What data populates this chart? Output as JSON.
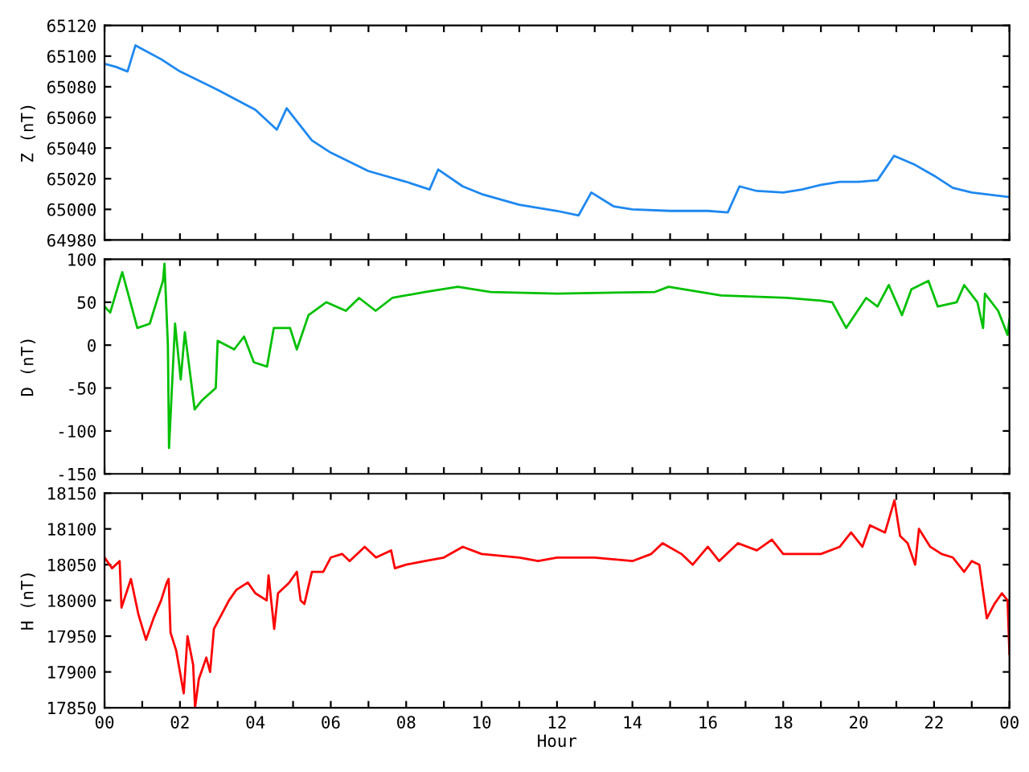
{
  "chart_data": [
    {
      "type": "line",
      "ylabel": "Z (nT)",
      "xlim": [
        0,
        24
      ],
      "ylim": [
        64980,
        65120
      ],
      "yticks": [
        64980,
        65000,
        65020,
        65040,
        65060,
        65080,
        65100,
        65120
      ],
      "tick_labels": "y",
      "grid": false,
      "xticks": [
        {
          "value": 0,
          "label": null
        },
        {
          "value": 1,
          "label": null
        },
        {
          "value": 2,
          "label": null
        },
        {
          "value": 3,
          "label": null
        },
        {
          "value": 4,
          "label": null
        },
        {
          "value": 5,
          "label": null
        },
        {
          "value": 6,
          "label": null
        },
        {
          "value": 7,
          "label": null
        },
        {
          "value": 8,
          "label": null
        },
        {
          "value": 9,
          "label": null
        },
        {
          "value": 10,
          "label": null
        },
        {
          "value": 11,
          "label": null
        },
        {
          "value": 12,
          "label": null
        },
        {
          "value": 13,
          "label": null
        },
        {
          "value": 14,
          "label": null
        },
        {
          "value": 15,
          "label": null
        },
        {
          "value": 16,
          "label": null
        },
        {
          "value": 17,
          "label": null
        },
        {
          "value": 18,
          "label": null
        },
        {
          "value": 19,
          "label": null
        },
        {
          "value": 20,
          "label": null
        },
        {
          "value": 21,
          "label": null
        },
        {
          "value": 22,
          "label": null
        },
        {
          "value": 23,
          "label": null
        },
        {
          "value": 24,
          "label": null
        }
      ],
      "x": [
        0,
        0.3,
        0.61,
        0.82,
        1.5,
        2,
        3,
        4,
        4.57,
        4.83,
        5.5,
        6,
        7,
        8,
        8.62,
        8.85,
        9.5,
        10,
        11,
        12,
        12.57,
        12.91,
        13.5,
        14,
        15,
        16,
        16.53,
        16.84,
        17.3,
        18,
        18.5,
        19,
        19.5,
        20,
        20.5,
        20.94,
        21.5,
        22,
        22.5,
        23,
        24
      ],
      "series": [
        {
          "color": "#1e88f0",
          "values": [
            65095,
            65093,
            65090,
            65107,
            65098,
            65090,
            65078,
            65065,
            65052,
            65066,
            65045,
            65037,
            65025,
            65018,
            65013,
            65026,
            65015,
            65010,
            65003,
            64999,
            64996,
            65011,
            65002,
            65000,
            64999,
            64999,
            64998,
            65015,
            65012,
            65011,
            65013,
            65016,
            65018,
            65018,
            65019,
            65035,
            65029,
            65022,
            65014,
            65011,
            65008
          ]
        }
      ]
    },
    {
      "type": "line",
      "ylabel": "D (nT)",
      "xlim": [
        0,
        24
      ],
      "ylim": [
        -150,
        100
      ],
      "yticks": [
        -150,
        -100,
        -50,
        0,
        50,
        100
      ],
      "tick_labels": "y",
      "grid": false,
      "xticks": [
        {
          "value": 0,
          "label": null
        },
        {
          "value": 1,
          "label": null
        },
        {
          "value": 2,
          "label": null
        },
        {
          "value": 3,
          "label": null
        },
        {
          "value": 4,
          "label": null
        },
        {
          "value": 5,
          "label": null
        },
        {
          "value": 6,
          "label": null
        },
        {
          "value": 7,
          "label": null
        },
        {
          "value": 8,
          "label": null
        },
        {
          "value": 9,
          "label": null
        },
        {
          "value": 10,
          "label": null
        },
        {
          "value": 11,
          "label": null
        },
        {
          "value": 12,
          "label": null
        },
        {
          "value": 13,
          "label": null
        },
        {
          "value": 14,
          "label": null
        },
        {
          "value": 15,
          "label": null
        },
        {
          "value": 16,
          "label": null
        },
        {
          "value": 17,
          "label": null
        },
        {
          "value": 18,
          "label": null
        },
        {
          "value": 19,
          "label": null
        },
        {
          "value": 20,
          "label": null
        },
        {
          "value": 21,
          "label": null
        },
        {
          "value": 22,
          "label": null
        },
        {
          "value": 23,
          "label": null
        },
        {
          "value": 24,
          "label": null
        }
      ],
      "x": [
        0,
        0.15,
        0.47,
        0.87,
        1.2,
        1.55,
        1.59,
        1.68,
        1.71,
        1.87,
        2.02,
        2.13,
        2.39,
        2.57,
        2.95,
        3.0,
        3.44,
        3.7,
        3.96,
        4.31,
        4.49,
        4.92,
        5.1,
        5.41,
        5.88,
        6.4,
        6.75,
        7.19,
        7.63,
        8.5,
        9.37,
        10.24,
        12,
        14.6,
        14.96,
        16.35,
        18.1,
        18.97,
        19.3,
        19.67,
        20.2,
        20.5,
        20.8,
        21.15,
        21.4,
        21.85,
        22.1,
        22.6,
        22.8,
        23.15,
        23.3,
        23.35,
        23.7,
        23.95,
        24
      ],
      "series": [
        {
          "color": "#00c000",
          "values": [
            45,
            38,
            85,
            20,
            25,
            75,
            95,
            0,
            -120,
            25,
            -40,
            15,
            -75,
            -65,
            -50,
            5,
            -5,
            10,
            -20,
            -25,
            20,
            20,
            -5,
            35,
            50,
            40,
            55,
            40,
            55,
            62,
            68,
            62,
            60,
            62,
            68,
            58,
            55,
            52,
            50,
            20,
            55,
            45,
            70,
            35,
            65,
            75,
            45,
            50,
            70,
            50,
            20,
            60,
            40,
            12,
            30
          ]
        }
      ]
    },
    {
      "type": "line",
      "ylabel": "H (nT)",
      "xlabel": "Hour",
      "xlim": [
        0,
        24
      ],
      "ylim": [
        17850,
        18150
      ],
      "yticks": [
        17850,
        17900,
        17950,
        18000,
        18050,
        18100,
        18150
      ],
      "grid": false,
      "xticks": [
        {
          "value": 0,
          "label": "00"
        },
        {
          "value": 1,
          "label": null
        },
        {
          "value": 2,
          "label": "02"
        },
        {
          "value": 3,
          "label": null
        },
        {
          "value": 4,
          "label": "04"
        },
        {
          "value": 5,
          "label": null
        },
        {
          "value": 6,
          "label": "06"
        },
        {
          "value": 7,
          "label": null
        },
        {
          "value": 8,
          "label": "08"
        },
        {
          "value": 9,
          "label": null
        },
        {
          "value": 10,
          "label": "10"
        },
        {
          "value": 11,
          "label": null
        },
        {
          "value": 12,
          "label": "12"
        },
        {
          "value": 13,
          "label": null
        },
        {
          "value": 14,
          "label": "14"
        },
        {
          "value": 15,
          "label": null
        },
        {
          "value": 16,
          "label": "16"
        },
        {
          "value": 17,
          "label": null
        },
        {
          "value": 18,
          "label": "18"
        },
        {
          "value": 19,
          "label": null
        },
        {
          "value": 20,
          "label": "20"
        },
        {
          "value": 21,
          "label": null
        },
        {
          "value": 22,
          "label": "22"
        },
        {
          "value": 23,
          "label": null
        },
        {
          "value": 24,
          "label": "00"
        }
      ],
      "x": [
        0,
        0.2,
        0.4,
        0.45,
        0.7,
        0.9,
        1.1,
        1.3,
        1.5,
        1.65,
        1.7,
        1.75,
        1.9,
        2.0,
        2.1,
        2.2,
        2.35,
        2.4,
        2.5,
        2.7,
        2.8,
        2.9,
        3.1,
        3.3,
        3.5,
        3.8,
        4.0,
        4.3,
        4.35,
        4.5,
        4.6,
        4.9,
        5.1,
        5.2,
        5.3,
        5.5,
        5.8,
        6.0,
        6.3,
        6.5,
        6.9,
        7.2,
        7.6,
        7.7,
        8.0,
        8.5,
        9,
        9.5,
        10,
        11,
        11.5,
        12,
        12.5,
        13,
        14,
        14.5,
        14.8,
        15.3,
        15.6,
        16.0,
        16.3,
        16.8,
        17.3,
        17.7,
        18,
        19,
        19.5,
        19.8,
        20.1,
        20.3,
        20.7,
        20.95,
        21.1,
        21.3,
        21.5,
        21.6,
        21.9,
        22.2,
        22.5,
        22.8,
        23.0,
        23.2,
        23.4,
        23.6,
        23.8,
        23.95,
        24
      ],
      "series": [
        {
          "color": "#ff0000",
          "values": [
            18060,
            18045,
            18055,
            17990,
            18030,
            17980,
            17945,
            17975,
            18000,
            18025,
            18030,
            17955,
            17930,
            17900,
            17870,
            17950,
            17910,
            17850,
            17890,
            17920,
            17900,
            17960,
            17980,
            18000,
            18015,
            18025,
            18010,
            18000,
            18035,
            17960,
            18010,
            18025,
            18040,
            18000,
            17995,
            18040,
            18040,
            18060,
            18065,
            18055,
            18075,
            18060,
            18070,
            18045,
            18050,
            18055,
            18060,
            18075,
            18065,
            18060,
            18055,
            18060,
            18060,
            18060,
            18055,
            18065,
            18080,
            18065,
            18050,
            18075,
            18055,
            18080,
            18070,
            18085,
            18065,
            18065,
            18075,
            18095,
            18075,
            18105,
            18095,
            18140,
            18090,
            18080,
            18050,
            18100,
            18075,
            18065,
            18060,
            18040,
            18055,
            18050,
            17975,
            17995,
            18010,
            18000,
            17925
          ]
        }
      ]
    }
  ]
}
